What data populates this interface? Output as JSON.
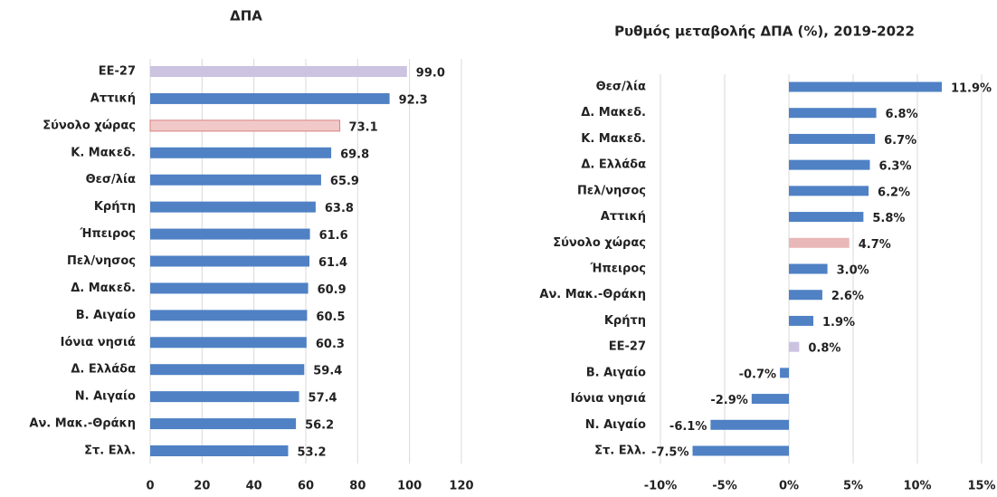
{
  "chart_data": [
    {
      "type": "hbar",
      "title": "ΔΠΑ",
      "categories": [
        "ΕΕ-27",
        "Αττική",
        "Σύνολο χώρας",
        "Κ. Μακεδ.",
        "Θεσ/λία",
        "Κρήτη",
        "Ήπειρος",
        "Πελ/νησος",
        "Δ. Μακεδ.",
        "Β. Αιγαίο",
        "Ιόνια νησιά",
        "Δ. Ελλάδα",
        "Ν. Αιγαίο",
        "Αν. Μακ.-Θράκη",
        "Στ. Ελλ."
      ],
      "values": [
        99.0,
        92.3,
        73.1,
        69.8,
        65.9,
        63.8,
        61.6,
        61.4,
        60.9,
        60.5,
        60.3,
        59.4,
        57.4,
        56.2,
        53.2
      ],
      "value_labels": [
        "99.0",
        "92.3",
        "73.1",
        "69.8",
        "65.9",
        "63.8",
        "61.6",
        "61.4",
        "60.9",
        "60.5",
        "60.3",
        "59.4",
        "57.4",
        "56.2",
        "53.2"
      ],
      "colors": [
        "#cbc3e0",
        "#4f81c4",
        "#f2c9c9",
        "#4f81c4",
        "#4f81c4",
        "#4f81c4",
        "#4f81c4",
        "#4f81c4",
        "#4f81c4",
        "#4f81c4",
        "#4f81c4",
        "#4f81c4",
        "#4f81c4",
        "#4f81c4",
        "#4f81c4"
      ],
      "xlim": [
        0,
        120
      ],
      "xticks": [
        0,
        20,
        40,
        60,
        80,
        100,
        120
      ],
      "grid": true
    },
    {
      "type": "hbar",
      "title": "Ρυθμός μεταβολής ΔΠΑ (%), 2019-2022",
      "categories": [
        "Θεσ/λία",
        "Δ. Μακεδ.",
        "Κ. Μακεδ.",
        "Δ. Ελλάδα",
        "Πελ/νησος",
        "Αττική",
        "Σύνολο χώρας",
        "Ήπειρος",
        "Αν. Μακ.-Θράκη",
        "Κρήτη",
        "ΕΕ-27",
        "Β. Αιγαίο",
        "Ιόνια νησιά",
        "Ν. Αιγαίο",
        "Στ. Ελλ."
      ],
      "values": [
        11.9,
        6.8,
        6.7,
        6.3,
        6.2,
        5.8,
        4.7,
        3.0,
        2.6,
        1.9,
        0.8,
        -0.7,
        -2.9,
        -6.1,
        -7.5
      ],
      "value_labels": [
        "11.9%",
        "6.8%",
        "6.7%",
        "6.3%",
        "6.2%",
        "5.8%",
        "4.7%",
        "3.0%",
        "2.6%",
        "1.9%",
        "0.8%",
        "-0.7%",
        "-2.9%",
        "-6.1%",
        "-7.5%"
      ],
      "colors": [
        "#4f81c4",
        "#4f81c4",
        "#4f81c4",
        "#4f81c4",
        "#4f81c4",
        "#4f81c4",
        "#e8b7b7",
        "#4f81c4",
        "#4f81c4",
        "#4f81c4",
        "#cbc3e0",
        "#4f81c4",
        "#4f81c4",
        "#4f81c4",
        "#4f81c4"
      ],
      "xlim": [
        -10,
        15
      ],
      "xticks": [
        {
          "value": -10,
          "label": "-10%"
        },
        {
          "value": -5,
          "label": "-5%"
        },
        {
          "value": 0,
          "label": "0%"
        },
        {
          "value": 5,
          "label": "5%"
        },
        {
          "value": 10,
          "label": "10%"
        },
        {
          "value": 15,
          "label": "15%"
        }
      ],
      "grid": true
    }
  ]
}
